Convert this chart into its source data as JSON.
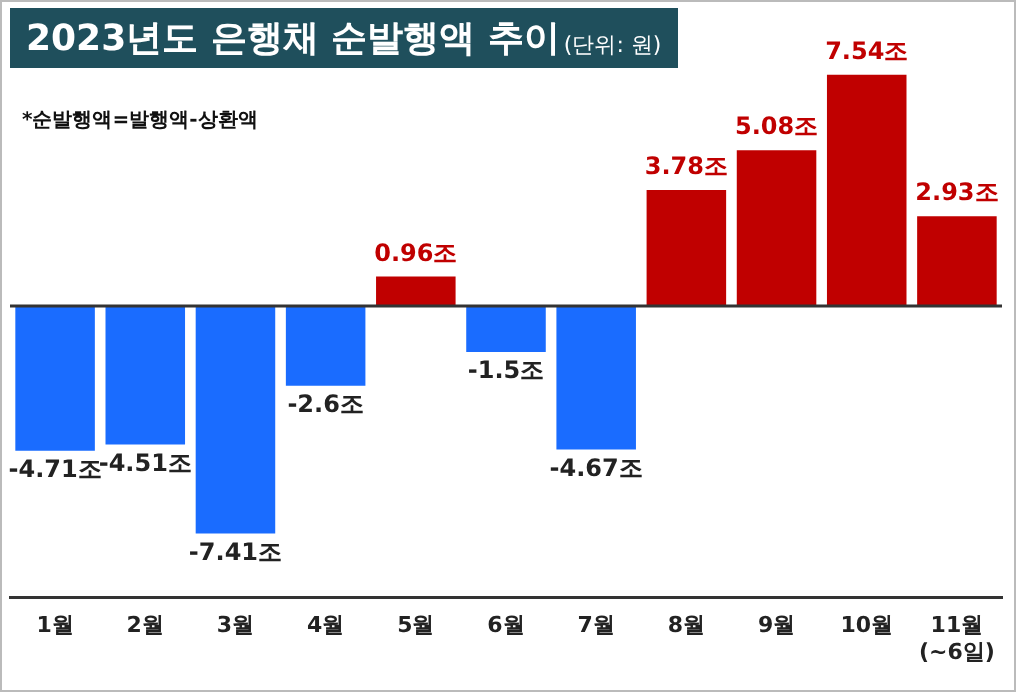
{
  "chart_data": {
    "type": "bar",
    "title": "2023년도 은행채 순발행액 추이",
    "subtitle": "(단위: 원)",
    "annotations": [
      "*순발행액=발행액-상환액"
    ],
    "categories": [
      "1월",
      "2월",
      "3월",
      "4월",
      "5월",
      "6월",
      "7월",
      "8월",
      "9월",
      "10월",
      "11월\n(~6일)"
    ],
    "values": [
      -4.71,
      -4.51,
      -7.41,
      -2.6,
      0.96,
      -1.5,
      -4.67,
      3.78,
      5.08,
      7.54,
      2.93
    ],
    "colors": [
      "#1a6cff",
      "#1a6cff",
      "#1a6cff",
      "#1a6cff",
      "#c00000",
      "#1a6cff",
      "#1a6cff",
      "#c00000",
      "#c00000",
      "#c00000",
      "#c00000"
    ],
    "value_labels": [
      "-4.71조",
      "-4.51조",
      "-7.41조",
      "-2.6조",
      "0.96조",
      "-1.5조",
      "-4.67조",
      "3.78조",
      "5.08조",
      "7.54조",
      "2.93조"
    ],
    "grid": false,
    "legend": false
  }
}
